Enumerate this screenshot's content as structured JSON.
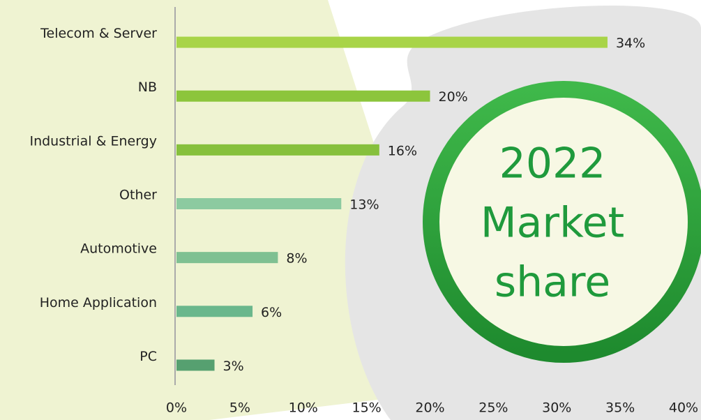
{
  "chart_data": {
    "type": "barh",
    "categories": [
      "Telecom & Server",
      "NB",
      "Industrial & Energy",
      "Other",
      "Automotive",
      "Home Application",
      "PC"
    ],
    "values": [
      34,
      20,
      16,
      13,
      8,
      6,
      3
    ],
    "value_labels": [
      "34%",
      "20%",
      "16%",
      "13%",
      "8%",
      "6%",
      "3%"
    ],
    "colors": [
      "#a8d448",
      "#8cc53c",
      "#86c03c",
      "#8ccaa0",
      "#7fc092",
      "#6ab78c",
      "#56a070"
    ],
    "xlim": [
      0,
      40
    ],
    "xticks": [
      {
        "value": 0,
        "label": "0%"
      },
      {
        "value": 5,
        "label": "5%"
      },
      {
        "value": 10,
        "label": "10%"
      },
      {
        "value": 15,
        "label": "15%"
      },
      {
        "value": 20,
        "label": "20%"
      },
      {
        "value": 25,
        "label": "25%"
      },
      {
        "value": 30,
        "label": "30%"
      },
      {
        "value": 35,
        "label": "35%"
      },
      {
        "value": 40,
        "label": "40%"
      }
    ],
    "annotation": [
      "2022",
      "Market",
      "share"
    ]
  }
}
